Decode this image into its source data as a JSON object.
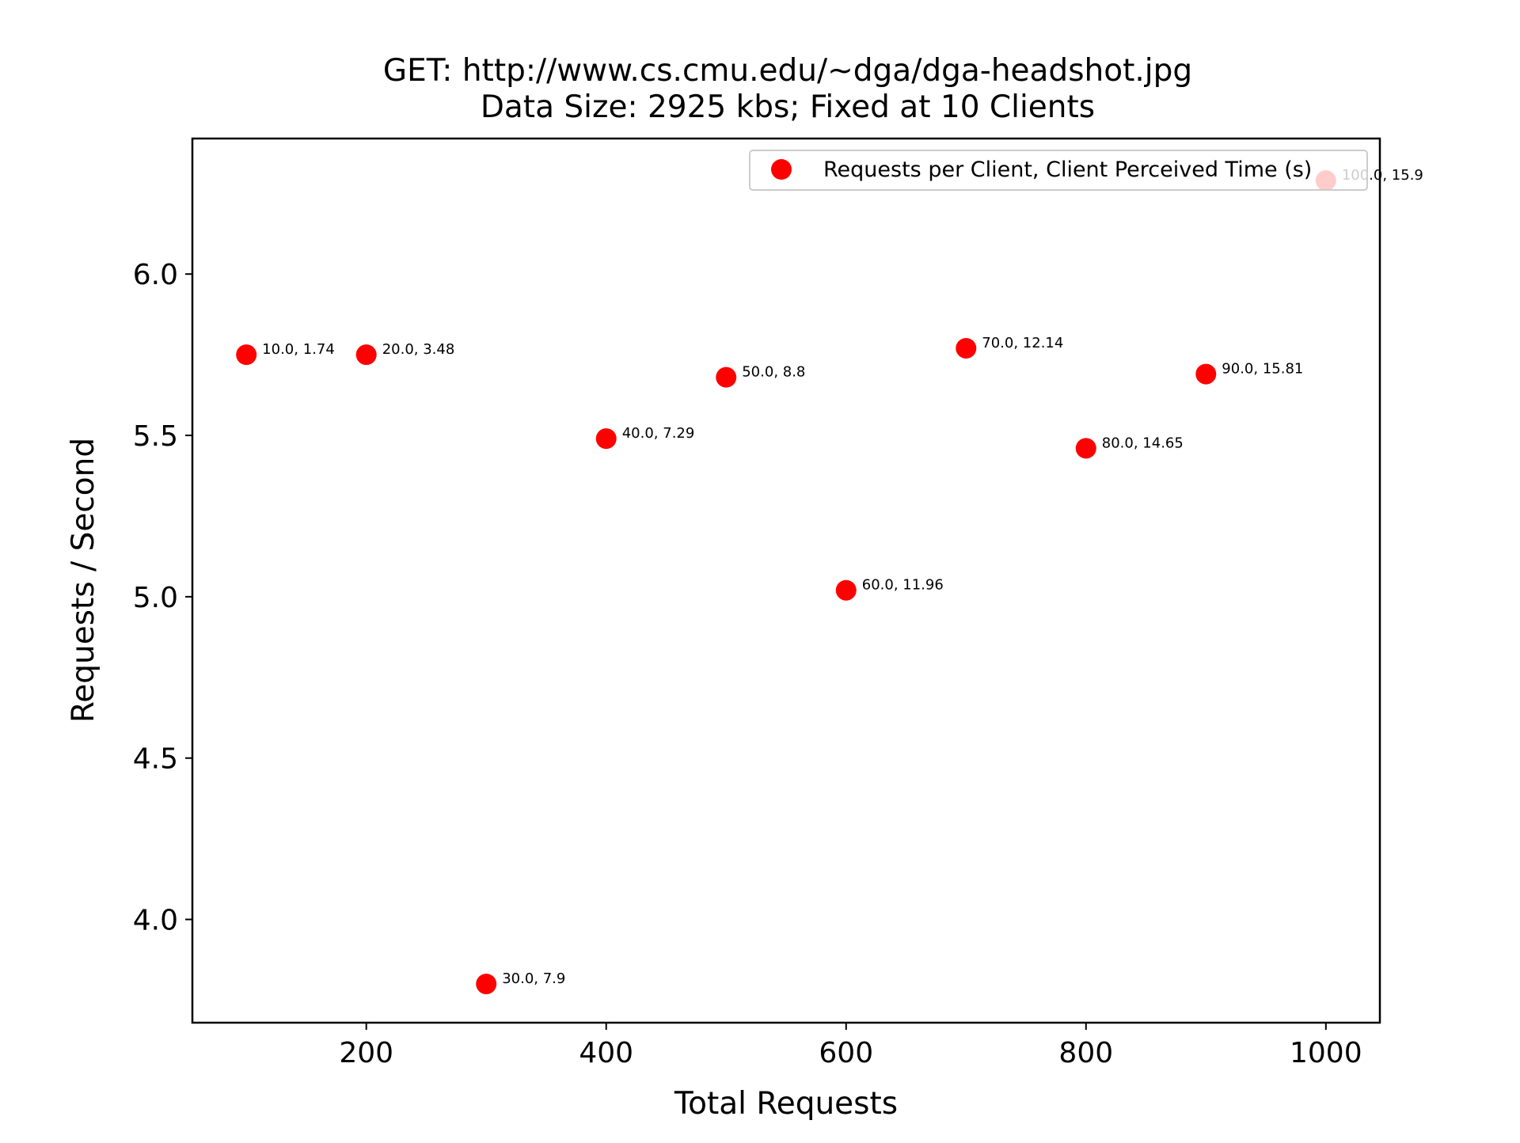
{
  "chart_data": {
    "type": "scatter",
    "title": "GET: http://www.cs.cmu.edu/~dga/dga-headshot.jpg",
    "subtitle": "Data Size: 2925 kbs; Fixed at 10 Clients",
    "xlabel": "Total Requests",
    "ylabel": "Requests / Second",
    "xlim": [
      55,
      1045
    ],
    "ylim": [
      3.68,
      6.42
    ],
    "xticks": [
      200,
      400,
      600,
      800,
      1000
    ],
    "xtick_labels": [
      "200",
      "400",
      "600",
      "800",
      "1000"
    ],
    "yticks": [
      4.0,
      4.5,
      5.0,
      5.5,
      6.0
    ],
    "ytick_labels": [
      "4.0",
      "4.5",
      "5.0",
      "5.5",
      "6.0"
    ],
    "grid": false,
    "legend_position": "top-right",
    "series": [
      {
        "name": "Requests per Client, Client Perceived Time (s)",
        "color": "#ff0000",
        "x": [
          100,
          200,
          300,
          400,
          500,
          600,
          700,
          800,
          900,
          1000
        ],
        "y": [
          5.75,
          5.75,
          3.8,
          5.49,
          5.68,
          5.02,
          5.77,
          5.46,
          5.69,
          6.29
        ],
        "labels": [
          "10.0, 1.74",
          "20.0, 3.48",
          "30.0, 7.9",
          "40.0, 7.29",
          "50.0, 8.8",
          "60.0, 11.96",
          "70.0, 12.14",
          "80.0, 14.65",
          "90.0, 15.81",
          "100.0, 15.9"
        ]
      }
    ]
  }
}
